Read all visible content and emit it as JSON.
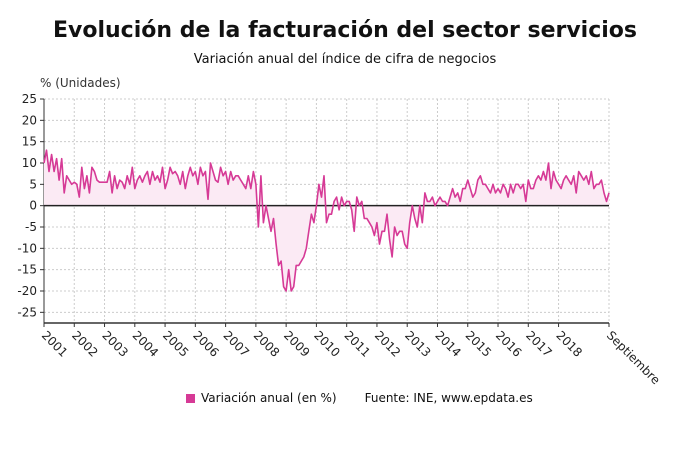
{
  "chart_data": {
    "type": "area",
    "title": "Evolución de la facturación del sector servicios",
    "subtitle": "Variación anual del índice de cifra de negocios",
    "ylabel": "% (Unidades)",
    "xlabel": "",
    "ylim": [
      -27.5,
      25
    ],
    "yticks": [
      25,
      20,
      15,
      10,
      5,
      0,
      -5,
      -10,
      -15,
      -20,
      -25
    ],
    "xtick_labels": [
      "2001",
      "2002",
      "2003",
      "2004",
      "2005",
      "2006",
      "2007",
      "2008",
      "2009",
      "2010",
      "2011",
      "2012",
      "2013",
      "2014",
      "2015",
      "2016",
      "2017",
      "2018",
      "Septiembre"
    ],
    "x_start": "2001-01",
    "x_end": "2019-09",
    "frequency": "monthly",
    "grid": true,
    "legend_position": "bottom",
    "series": [
      {
        "name": "Variación anual (en %)",
        "color": "#d63a96",
        "values": [
          10,
          13,
          8,
          12,
          8,
          11,
          6,
          11,
          3,
          7,
          6,
          5,
          5.5,
          5,
          2,
          9,
          4,
          7,
          3,
          9,
          8,
          6,
          5.5,
          5.5,
          5.5,
          5.5,
          8,
          3,
          7,
          4,
          6,
          5.5,
          4,
          7,
          5,
          9,
          4,
          6,
          7,
          5.5,
          7,
          8,
          5,
          8,
          6,
          7,
          5.5,
          9,
          4,
          6,
          9,
          7.5,
          8,
          7,
          5,
          8,
          4,
          7,
          9,
          7,
          8,
          5,
          9,
          7,
          8,
          1.5,
          10,
          8,
          6,
          5.5,
          9,
          7,
          8,
          5,
          8,
          6,
          7,
          7,
          6,
          5,
          4,
          7,
          4,
          8,
          5,
          -5,
          7,
          -4,
          0,
          -3,
          -6,
          -3,
          -9,
          -14,
          -13,
          -19,
          -20,
          -15,
          -20,
          -19,
          -14,
          -14,
          -13,
          -12,
          -10,
          -6,
          -2,
          -4,
          0,
          5,
          2,
          7,
          -4,
          -2,
          -2,
          1,
          2,
          -1,
          2,
          0,
          1,
          1,
          -1,
          -6,
          2,
          0,
          1,
          -3,
          -3,
          -4,
          -5,
          -7,
          -4,
          -9,
          -6,
          -6,
          -2,
          -8,
          -12,
          -5,
          -7,
          -6,
          -6,
          -9,
          -10,
          -4,
          0,
          -3,
          -5,
          0,
          -4,
          3,
          1,
          1,
          2,
          0,
          1,
          2,
          1,
          1,
          0,
          2,
          4,
          2,
          3,
          1,
          4,
          4,
          6,
          4,
          2,
          3,
          6,
          7,
          5,
          5,
          4,
          3,
          5,
          3,
          4,
          3,
          5,
          4,
          2,
          5,
          3,
          5,
          5,
          4,
          5,
          1,
          6,
          4,
          4,
          6,
          7,
          6,
          8,
          6,
          10,
          4,
          8,
          6,
          5,
          4,
          6,
          7,
          6,
          5,
          7,
          3,
          8,
          7,
          6,
          7,
          5,
          8,
          4,
          5,
          5,
          6,
          3,
          1,
          3
        ]
      }
    ],
    "fill_color": "#fbeaf4",
    "source": "Fuente: INE, www.epdata.es"
  }
}
